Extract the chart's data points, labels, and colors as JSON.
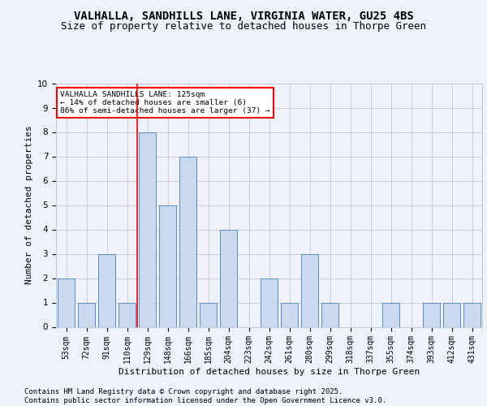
{
  "title1": "VALHALLA, SANDHILLS LANE, VIRGINIA WATER, GU25 4BS",
  "title2": "Size of property relative to detached houses in Thorpe Green",
  "xlabel": "Distribution of detached houses by size in Thorpe Green",
  "ylabel": "Number of detached properties",
  "categories": [
    "53sqm",
    "72sqm",
    "91sqm",
    "110sqm",
    "129sqm",
    "148sqm",
    "166sqm",
    "185sqm",
    "204sqm",
    "223sqm",
    "242sqm",
    "261sqm",
    "280sqm",
    "299sqm",
    "318sqm",
    "337sqm",
    "355sqm",
    "374sqm",
    "393sqm",
    "412sqm",
    "431sqm"
  ],
  "values": [
    2,
    1,
    3,
    1,
    8,
    5,
    7,
    1,
    4,
    0,
    2,
    1,
    3,
    1,
    0,
    0,
    1,
    0,
    1,
    1,
    1
  ],
  "bar_color": "#c9d9f0",
  "bar_edge_color": "#5b8cc8",
  "vline_index": 4,
  "vline_color": "red",
  "annotation_text": "VALHALLA SANDHILLS LANE: 125sqm\n← 14% of detached houses are smaller (6)\n86% of semi-detached houses are larger (37) →",
  "annotation_box_color": "white",
  "annotation_box_edge": "red",
  "footer_text": "Contains HM Land Registry data © Crown copyright and database right 2025.\nContains public sector information licensed under the Open Government Licence v3.0.",
  "ylim": [
    0,
    10
  ],
  "background_color": "#eef2fb",
  "plot_bg_color": "#eef2fb",
  "grid_color": "#c0c8e0",
  "title_fontsize": 10,
  "subtitle_fontsize": 9,
  "tick_fontsize": 7,
  "ylabel_fontsize": 8,
  "xlabel_fontsize": 8,
  "footer_fontsize": 6.5
}
